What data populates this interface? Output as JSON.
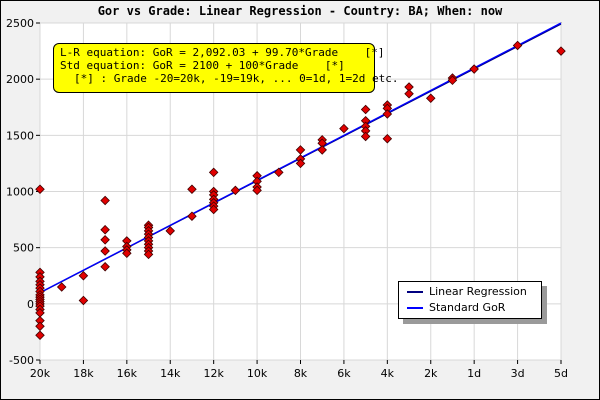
{
  "chart_data": {
    "type": "scatter",
    "title": "Gor vs Grade: Linear Regression - Country: BA; When: now",
    "equations": {
      "lr": "L-R equation: GoR = 2,092.03 + 99.70*Grade    [*]",
      "std": "Std equation: GoR = 2100 + 100*Grade    [*]",
      "note": "[*] : Grade -20=20k, -19=19k, ... 0=1d, 1=2d etc."
    },
    "x_ticks": [
      {
        "v": -20,
        "label": "20k"
      },
      {
        "v": -18,
        "label": "18k"
      },
      {
        "v": -16,
        "label": "16k"
      },
      {
        "v": -14,
        "label": "14k"
      },
      {
        "v": -12,
        "label": "12k"
      },
      {
        "v": -10,
        "label": "10k"
      },
      {
        "v": -8,
        "label": "8k"
      },
      {
        "v": -6,
        "label": "6k"
      },
      {
        "v": -4,
        "label": "4k"
      },
      {
        "v": -2,
        "label": "2k"
      },
      {
        "v": 0,
        "label": "1d"
      },
      {
        "v": 2,
        "label": "3d"
      },
      {
        "v": 4,
        "label": "5d"
      }
    ],
    "y_ticks": [
      -500,
      0,
      500,
      1000,
      1500,
      2000,
      2500
    ],
    "xlim": [
      -20,
      4
    ],
    "ylim": [
      -500,
      2500
    ],
    "grid": true,
    "legend_position": "bottom-right",
    "series": [
      {
        "name": "Linear Regression",
        "type": "line",
        "color": "#000080",
        "intercept": 2092.03,
        "slope": 99.7
      },
      {
        "name": "Standard GoR",
        "type": "line",
        "color": "#0000ff",
        "intercept": 2100,
        "slope": 100
      }
    ],
    "points": {
      "color": "#e00000",
      "data": [
        [
          -20,
          1020
        ],
        [
          -20,
          280
        ],
        [
          -20,
          240
        ],
        [
          -20,
          200
        ],
        [
          -20,
          170
        ],
        [
          -20,
          140
        ],
        [
          -20,
          110
        ],
        [
          -20,
          80
        ],
        [
          -20,
          60
        ],
        [
          -20,
          40
        ],
        [
          -20,
          20
        ],
        [
          -20,
          0
        ],
        [
          -20,
          -20
        ],
        [
          -20,
          -50
        ],
        [
          -20,
          -80
        ],
        [
          -20,
          -150
        ],
        [
          -20,
          -200
        ],
        [
          -20,
          -280
        ],
        [
          -19,
          150
        ],
        [
          -18,
          250
        ],
        [
          -18,
          30
        ],
        [
          -17,
          920
        ],
        [
          -17,
          660
        ],
        [
          -17,
          570
        ],
        [
          -17,
          470
        ],
        [
          -17,
          330
        ],
        [
          -16,
          560
        ],
        [
          -16,
          510
        ],
        [
          -16,
          480
        ],
        [
          -16,
          450
        ],
        [
          -15,
          700
        ],
        [
          -15,
          680
        ],
        [
          -15,
          650
        ],
        [
          -15,
          620
        ],
        [
          -15,
          590
        ],
        [
          -15,
          560
        ],
        [
          -15,
          530
        ],
        [
          -15,
          500
        ],
        [
          -15,
          470
        ],
        [
          -15,
          440
        ],
        [
          -14,
          650
        ],
        [
          -13,
          1020
        ],
        [
          -13,
          780
        ],
        [
          -12,
          1170
        ],
        [
          -12,
          1000
        ],
        [
          -12,
          970
        ],
        [
          -12,
          930
        ],
        [
          -12,
          900
        ],
        [
          -12,
          870
        ],
        [
          -12,
          840
        ],
        [
          -11,
          1010
        ],
        [
          -10,
          1140
        ],
        [
          -10,
          1090
        ],
        [
          -10,
          1040
        ],
        [
          -10,
          1010
        ],
        [
          -9,
          1170
        ],
        [
          -8,
          1370
        ],
        [
          -8,
          1290
        ],
        [
          -8,
          1250
        ],
        [
          -7,
          1460
        ],
        [
          -7,
          1430
        ],
        [
          -7,
          1370
        ],
        [
          -6,
          1560
        ],
        [
          -5,
          1730
        ],
        [
          -5,
          1630
        ],
        [
          -5,
          1580
        ],
        [
          -5,
          1540
        ],
        [
          -5,
          1490
        ],
        [
          -4,
          1770
        ],
        [
          -4,
          1740
        ],
        [
          -4,
          1690
        ],
        [
          -4,
          1470
        ],
        [
          -3,
          1930
        ],
        [
          -3,
          1870
        ],
        [
          -2,
          1830
        ],
        [
          -1,
          2010
        ],
        [
          -1,
          1990
        ],
        [
          0,
          2090
        ],
        [
          2,
          2300
        ],
        [
          4,
          2250
        ]
      ]
    }
  }
}
